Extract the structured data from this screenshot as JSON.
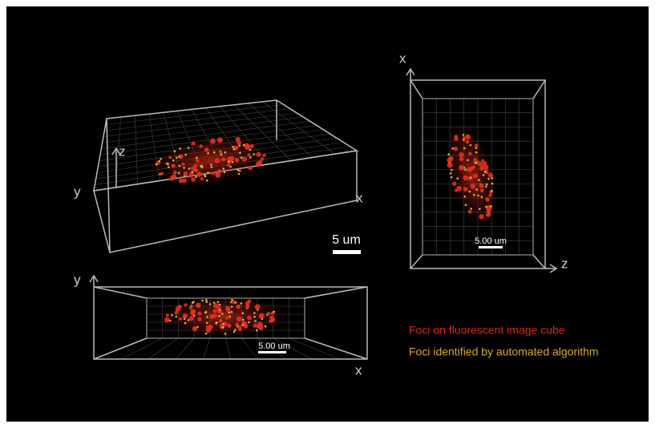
{
  "panels": [
    {
      "axis_labels": [
        "z",
        "y",
        "x"
      ],
      "scale_bar": "5 um"
    },
    {
      "axis_labels": [
        "y",
        "x"
      ],
      "scale_bar": "5.00 um"
    },
    {
      "axis_labels": [
        "x",
        "z"
      ],
      "scale_bar": "5.00 um"
    }
  ],
  "legend": [
    "Foci on fluorescent image cube",
    "Foci identified by automated algorithm"
  ]
}
